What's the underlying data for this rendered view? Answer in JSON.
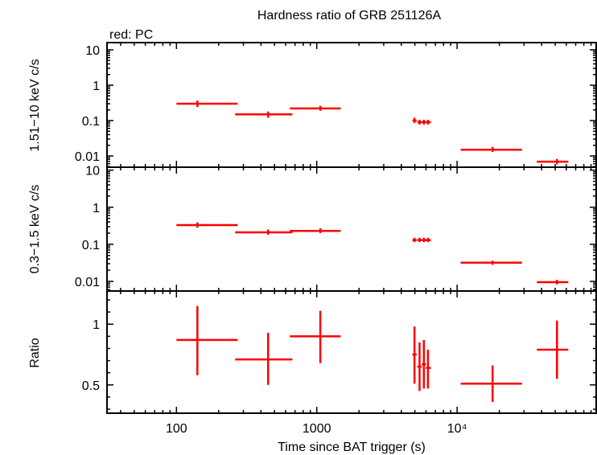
{
  "chart_data": {
    "type": "scatter",
    "title": "Hardness ratio of GRB 251126A",
    "subtitle": "red: PC",
    "xlabel": "Time since BAT trigger (s)",
    "xscale": "log",
    "xlim": [
      32,
      98000
    ],
    "xticks": [
      {
        "value": 100,
        "label": "100"
      },
      {
        "value": 1000,
        "label": "1000"
      },
      {
        "value": 10000,
        "label": "10⁴"
      }
    ],
    "series_color": "#ff0000",
    "panels": [
      {
        "ylabel": "1.51−10 keV c/s",
        "yscale": "log",
        "ylim": [
          0.0048,
          16
        ],
        "yticks": [
          {
            "value": 10,
            "label": "10"
          },
          {
            "value": 1,
            "label": "1"
          },
          {
            "value": 0.1,
            "label": "0.1"
          },
          {
            "value": 0.01,
            "label": "0.01"
          }
        ],
        "points": [
          {
            "x": 141,
            "xlo": 100,
            "xhi": 273,
            "y": 0.3,
            "ylo": 0.24,
            "yhi": 0.37
          },
          {
            "x": 450,
            "xlo": 262,
            "xhi": 670,
            "y": 0.15,
            "ylo": 0.12,
            "yhi": 0.18
          },
          {
            "x": 1060,
            "xlo": 643,
            "xhi": 1480,
            "y": 0.22,
            "ylo": 0.19,
            "yhi": 0.26
          },
          {
            "x": 4970,
            "xlo": 4800,
            "xhi": 5150,
            "y": 0.1,
            "ylo": 0.085,
            "yhi": 0.12
          },
          {
            "x": 5400,
            "xlo": 5200,
            "xhi": 5600,
            "y": 0.09,
            "ylo": 0.077,
            "yhi": 0.105
          },
          {
            "x": 5800,
            "xlo": 5600,
            "xhi": 6000,
            "y": 0.09,
            "ylo": 0.077,
            "yhi": 0.105
          },
          {
            "x": 6200,
            "xlo": 6000,
            "xhi": 6500,
            "y": 0.09,
            "ylo": 0.077,
            "yhi": 0.105
          },
          {
            "x": 17900,
            "xlo": 10600,
            "xhi": 29000,
            "y": 0.015,
            "ylo": 0.013,
            "yhi": 0.018
          },
          {
            "x": 51500,
            "xlo": 37000,
            "xhi": 62000,
            "y": 0.0069,
            "ylo": 0.0058,
            "yhi": 0.0082
          }
        ]
      },
      {
        "ylabel": "0.3−1.5 keV c/s",
        "yscale": "log",
        "ylim": [
          0.0055,
          12
        ],
        "yticks": [
          {
            "value": 10,
            "label": "10"
          },
          {
            "value": 1,
            "label": "1"
          },
          {
            "value": 0.1,
            "label": "0.1"
          },
          {
            "value": 0.01,
            "label": "0.01"
          }
        ],
        "points": [
          {
            "x": 141,
            "xlo": 100,
            "xhi": 273,
            "y": 0.33,
            "ylo": 0.28,
            "yhi": 0.39
          },
          {
            "x": 450,
            "xlo": 262,
            "xhi": 670,
            "y": 0.21,
            "ylo": 0.18,
            "yhi": 0.25
          },
          {
            "x": 1060,
            "xlo": 643,
            "xhi": 1480,
            "y": 0.23,
            "ylo": 0.2,
            "yhi": 0.27
          },
          {
            "x": 4970,
            "xlo": 4800,
            "xhi": 5150,
            "y": 0.13,
            "ylo": 0.115,
            "yhi": 0.15
          },
          {
            "x": 5400,
            "xlo": 5200,
            "xhi": 5600,
            "y": 0.13,
            "ylo": 0.115,
            "yhi": 0.15
          },
          {
            "x": 5800,
            "xlo": 5600,
            "xhi": 6000,
            "y": 0.13,
            "ylo": 0.115,
            "yhi": 0.15
          },
          {
            "x": 6200,
            "xlo": 6000,
            "xhi": 6500,
            "y": 0.13,
            "ylo": 0.115,
            "yhi": 0.15
          },
          {
            "x": 17900,
            "xlo": 10600,
            "xhi": 29000,
            "y": 0.032,
            "ylo": 0.028,
            "yhi": 0.036
          },
          {
            "x": 51500,
            "xlo": 37000,
            "xhi": 62000,
            "y": 0.0095,
            "ylo": 0.0083,
            "yhi": 0.011
          }
        ]
      },
      {
        "ylabel": "Ratio",
        "yscale": "linear",
        "ylim": [
          0.267,
          1.273
        ],
        "yticks": [
          {
            "value": 1,
            "label": "1"
          },
          {
            "value": 0.5,
            "label": "0.5"
          }
        ],
        "points": [
          {
            "x": 141,
            "xlo": 100,
            "xhi": 273,
            "y": 0.87,
            "ylo": 0.58,
            "yhi": 1.15
          },
          {
            "x": 450,
            "xlo": 262,
            "xhi": 670,
            "y": 0.71,
            "ylo": 0.5,
            "yhi": 0.93
          },
          {
            "x": 1060,
            "xlo": 643,
            "xhi": 1480,
            "y": 0.9,
            "ylo": 0.68,
            "yhi": 1.11
          },
          {
            "x": 4970,
            "xlo": 4800,
            "xhi": 5150,
            "y": 0.75,
            "ylo": 0.51,
            "yhi": 0.98
          },
          {
            "x": 5400,
            "xlo": 5200,
            "xhi": 5600,
            "y": 0.65,
            "ylo": 0.45,
            "yhi": 0.85
          },
          {
            "x": 5800,
            "xlo": 5600,
            "xhi": 6000,
            "y": 0.67,
            "ylo": 0.47,
            "yhi": 0.87
          },
          {
            "x": 6200,
            "xlo": 6000,
            "xhi": 6500,
            "y": 0.64,
            "ylo": 0.47,
            "yhi": 0.79
          },
          {
            "x": 17900,
            "xlo": 10600,
            "xhi": 29000,
            "y": 0.51,
            "ylo": 0.36,
            "yhi": 0.66
          },
          {
            "x": 51500,
            "xlo": 37000,
            "xhi": 62000,
            "y": 0.79,
            "ylo": 0.55,
            "yhi": 1.03
          }
        ]
      }
    ]
  }
}
